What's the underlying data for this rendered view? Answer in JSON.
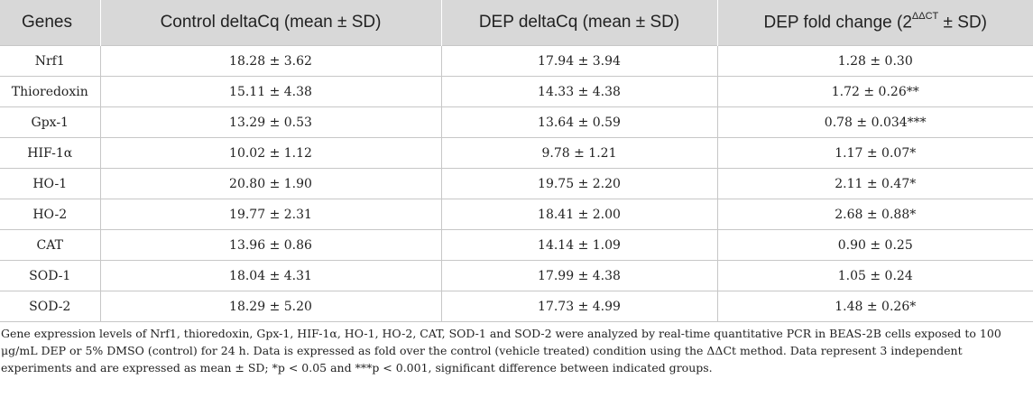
{
  "table": {
    "headers": {
      "genes": "Genes",
      "control": "Control deltaCq (mean ± SD)",
      "dep": "DEP deltaCq (mean ± SD)",
      "fold_prefix": "DEP fold change (2",
      "fold_sup": "ΔΔCT",
      "fold_suffix": " ± SD)"
    },
    "rows": [
      {
        "gene": "Nrf1",
        "control": "18.28 ± 3.62",
        "dep": "17.94 ± 3.94",
        "fold": "1.28 ± 0.30"
      },
      {
        "gene": "Thioredoxin",
        "control": "15.11 ± 4.38",
        "dep": "14.33 ± 4.38",
        "fold": "1.72 ± 0.26**"
      },
      {
        "gene": "Gpx-1",
        "control": "13.29 ± 0.53",
        "dep": "13.64 ± 0.59",
        "fold": "0.78 ± 0.034***"
      },
      {
        "gene": "HIF-1α",
        "control": "10.02 ± 1.12",
        "dep": "9.78 ± 1.21",
        "fold": "1.17 ± 0.07*"
      },
      {
        "gene": "HO-1",
        "control": "20.80 ± 1.90",
        "dep": "19.75 ± 2.20",
        "fold": "2.11 ± 0.47*"
      },
      {
        "gene": "HO-2",
        "control": "19.77 ± 2.31",
        "dep": "18.41 ± 2.00",
        "fold": "2.68 ± 0.88*"
      },
      {
        "gene": "CAT",
        "control": "13.96 ± 0.86",
        "dep": "14.14 ± 1.09",
        "fold": "0.90 ± 0.25"
      },
      {
        "gene": "SOD-1",
        "control": "18.04 ± 4.31",
        "dep": "17.99 ± 4.38",
        "fold": "1.05 ± 0.24"
      },
      {
        "gene": "SOD-2",
        "control": "18.29 ± 5.20",
        "dep": "17.73 ± 4.99",
        "fold": "1.48 ± 0.26*"
      }
    ]
  },
  "caption": "Gene expression levels of Nrf1, thioredoxin, Gpx-1, HIF-1α, HO-1, HO-2, CAT, SOD-1 and SOD-2 were analyzed by real-time quantitative PCR in BEAS-2B cells exposed to 100 μg/mL DEP or 5% DMSO (control) for 24 h. Data is expressed as fold over the control (vehicle treated) condition using the ΔΔCt method. Data represent 3 independent experiments and are expressed as mean ± SD; *p < 0.05 and ***p < 0.001, significant difference between indicated groups."
}
